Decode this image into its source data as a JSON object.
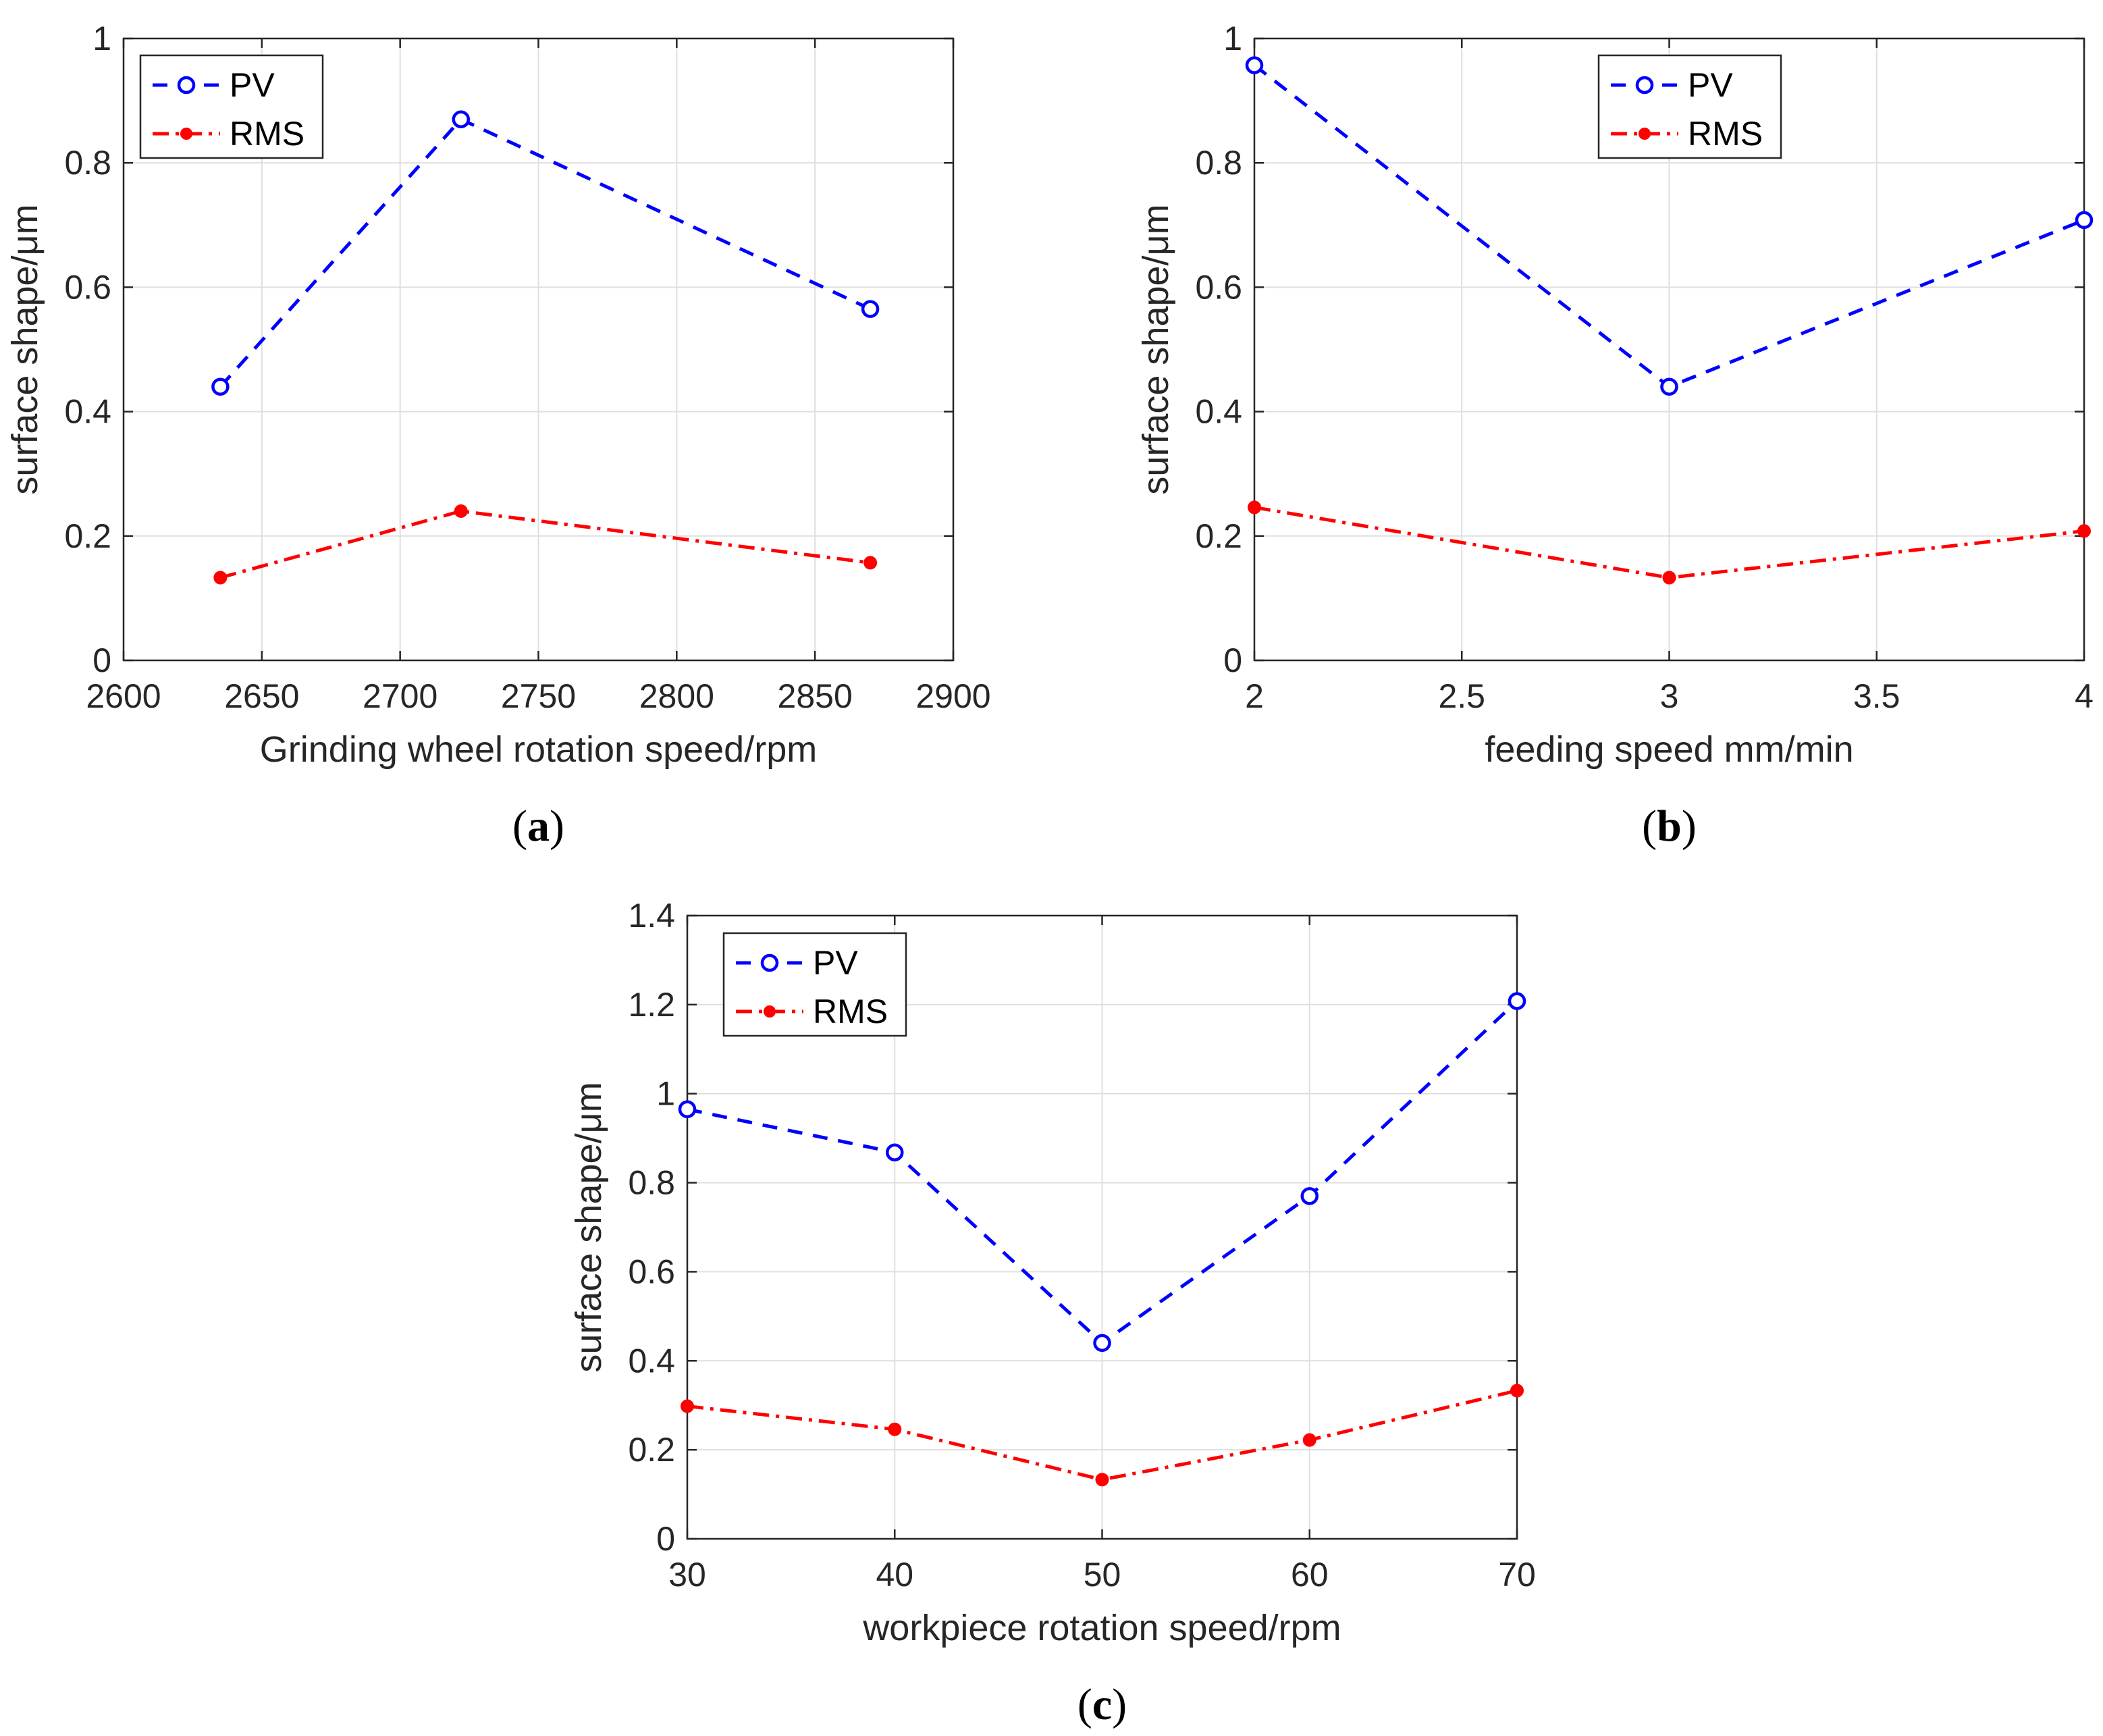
{
  "chart_data": [
    {
      "type": "line",
      "panel_label": "a",
      "xlabel": "Grinding wheel rotation speed/rpm",
      "ylabel": "surface shape/μm",
      "xlim": [
        2600,
        2900
      ],
      "ylim": [
        0,
        1
      ],
      "x_ticks": [
        2600,
        2650,
        2700,
        2750,
        2800,
        2850,
        2900
      ],
      "x_tick_labels": [
        "2600",
        "2650",
        "2700",
        "2750",
        "2800",
        "2850",
        "2900"
      ],
      "y_ticks": [
        0,
        0.2,
        0.4,
        0.6,
        0.8,
        1
      ],
      "y_tick_labels": [
        "0",
        "0.2",
        "0.4",
        "0.6",
        "0.8",
        "1"
      ],
      "grid": true,
      "legend_position": "top-left",
      "x": [
        2635,
        2722,
        2870
      ],
      "series": [
        {
          "name": "PV",
          "values": [
            0.44,
            0.87,
            0.565
          ],
          "color": "#0000ff",
          "marker": "open-circle",
          "line_style": "dashed"
        },
        {
          "name": "RMS",
          "values": [
            0.133,
            0.24,
            0.157
          ],
          "color": "#ff0000",
          "marker": "filled-circle",
          "line_style": "dash-dot"
        }
      ]
    },
    {
      "type": "line",
      "panel_label": "b",
      "xlabel": "feeding speed mm/min",
      "ylabel": "surface shape/μm",
      "xlim": [
        2,
        4
      ],
      "ylim": [
        0,
        1
      ],
      "x_ticks": [
        2,
        2.5,
        3,
        3.5,
        4
      ],
      "x_tick_labels": [
        "2",
        "2.5",
        "3",
        "3.5",
        "4"
      ],
      "y_ticks": [
        0,
        0.2,
        0.4,
        0.6,
        0.8,
        1
      ],
      "y_tick_labels": [
        "0",
        "0.2",
        "0.4",
        "0.6",
        "0.8",
        "1"
      ],
      "grid": true,
      "legend_position": "top-center",
      "x": [
        2,
        3,
        4
      ],
      "series": [
        {
          "name": "PV",
          "values": [
            0.957,
            0.44,
            0.708
          ],
          "color": "#0000ff",
          "marker": "open-circle",
          "line_style": "dashed"
        },
        {
          "name": "RMS",
          "values": [
            0.246,
            0.133,
            0.208
          ],
          "color": "#ff0000",
          "marker": "filled-circle",
          "line_style": "dash-dot"
        }
      ]
    },
    {
      "type": "line",
      "panel_label": "c",
      "xlabel": "workpiece rotation speed/rpm",
      "ylabel": "surface shape/μm",
      "xlim": [
        30,
        70
      ],
      "ylim": [
        0,
        1.4
      ],
      "x_ticks": [
        30,
        40,
        50,
        60,
        70
      ],
      "x_tick_labels": [
        "30",
        "40",
        "50",
        "60",
        "70"
      ],
      "y_ticks": [
        0,
        0.2,
        0.4,
        0.6,
        0.8,
        1,
        1.2,
        1.4
      ],
      "y_tick_labels": [
        "0",
        "0.2",
        "0.4",
        "0.6",
        "0.8",
        "1",
        "1.2",
        "1.4"
      ],
      "grid": true,
      "legend_position": "top-left",
      "x": [
        30,
        40,
        50,
        60,
        70
      ],
      "series": [
        {
          "name": "PV",
          "values": [
            0.965,
            0.868,
            0.44,
            0.77,
            1.208
          ],
          "color": "#0000ff",
          "marker": "open-circle",
          "line_style": "dashed"
        },
        {
          "name": "RMS",
          "values": [
            0.298,
            0.246,
            0.133,
            0.222,
            0.333
          ],
          "color": "#ff0000",
          "marker": "filled-circle",
          "line_style": "dash-dot"
        }
      ]
    }
  ]
}
